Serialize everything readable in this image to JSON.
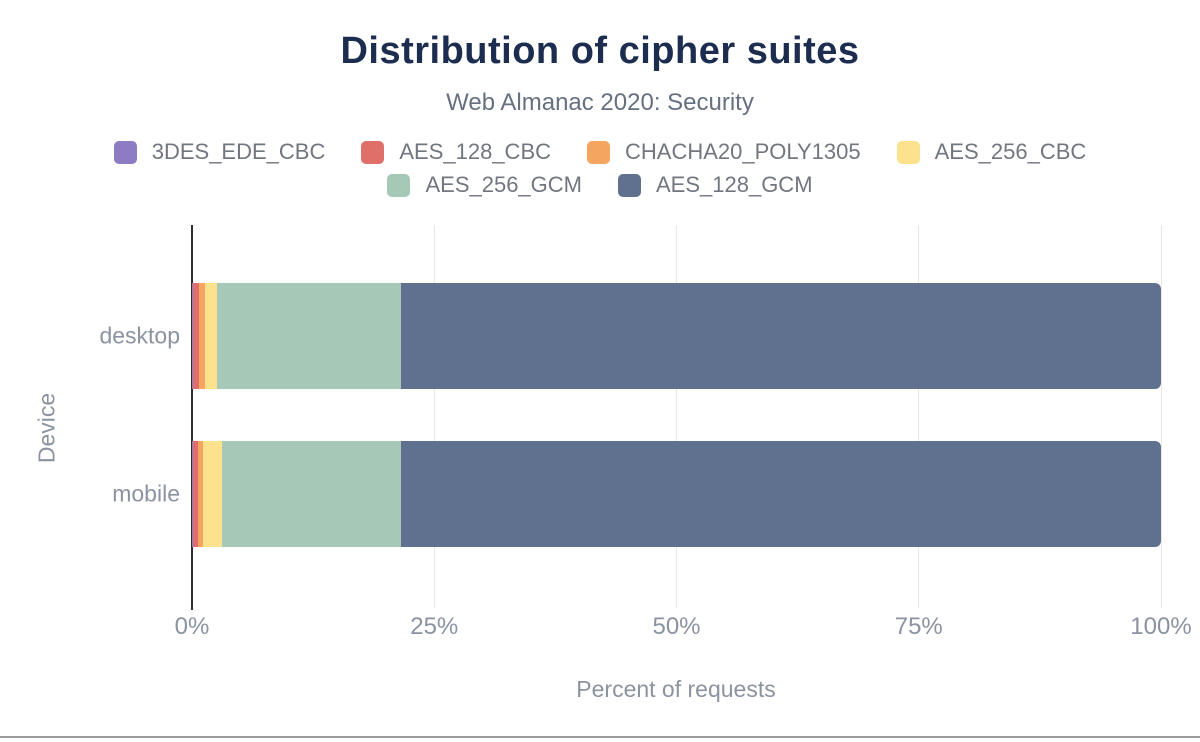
{
  "chart_data": {
    "type": "bar",
    "orientation": "horizontal",
    "stacked": true,
    "title": "Distribution of cipher suites",
    "subtitle": "Web Almanac 2020: Security",
    "categories": [
      "desktop",
      "mobile"
    ],
    "series": [
      {
        "name": "3DES_EDE_CBC",
        "color": "#8d7bc3",
        "values": [
          0.1,
          0.1
        ]
      },
      {
        "name": "AES_128_CBC",
        "color": "#df6f68",
        "values": [
          0.6,
          0.5
        ]
      },
      {
        "name": "CHACHA20_POLY1305",
        "color": "#f4a661",
        "values": [
          0.6,
          0.5
        ]
      },
      {
        "name": "AES_256_CBC",
        "color": "#fce28c",
        "values": [
          1.3,
          2.0
        ]
      },
      {
        "name": "AES_256_GCM",
        "color": "#a6c9b7",
        "values": [
          19.0,
          18.5
        ]
      },
      {
        "name": "AES_128_GCM",
        "color": "#60718f",
        "values": [
          78.4,
          78.4
        ]
      }
    ],
    "xlabel": "Percent of requests",
    "ylabel": "Device",
    "xlim": [
      0,
      100
    ],
    "x_ticks": [
      {
        "label": "0%",
        "value": 0
      },
      {
        "label": "25%",
        "value": 25
      },
      {
        "label": "50%",
        "value": 50
      },
      {
        "label": "75%",
        "value": 75
      },
      {
        "label": "100%",
        "value": 100
      }
    ],
    "gridlines": [
      25,
      50,
      75,
      100
    ],
    "legend_position": "top",
    "units": "percent"
  },
  "colors": {
    "title": "#1c2d4f",
    "subtitle": "#667080",
    "legend_text": "#71767f",
    "axis_text": "#8b93a1",
    "gridline": "#e7e7e7",
    "axis_line": "#2e2e2e",
    "bottom_border": "#9b9b9b",
    "background": "#ffffff"
  }
}
